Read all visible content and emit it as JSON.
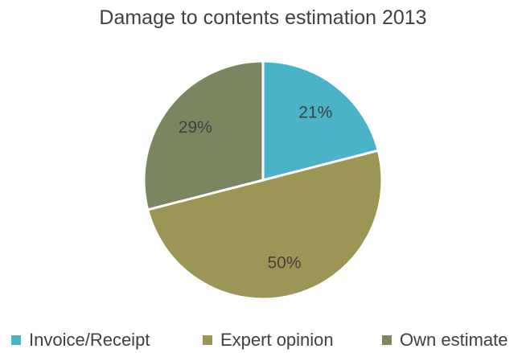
{
  "chart_data": {
    "type": "pie",
    "title": "Damage to contents estimation 2013",
    "categories": [
      "Invoice/Receipt",
      "Expert opinion",
      "Own estimate"
    ],
    "values": [
      21,
      50,
      29
    ],
    "labels": [
      "21%",
      "50%",
      "29%"
    ],
    "colors": [
      "#4bb3c8",
      "#9c9556",
      "#7a8660"
    ],
    "legend_position": "bottom"
  }
}
